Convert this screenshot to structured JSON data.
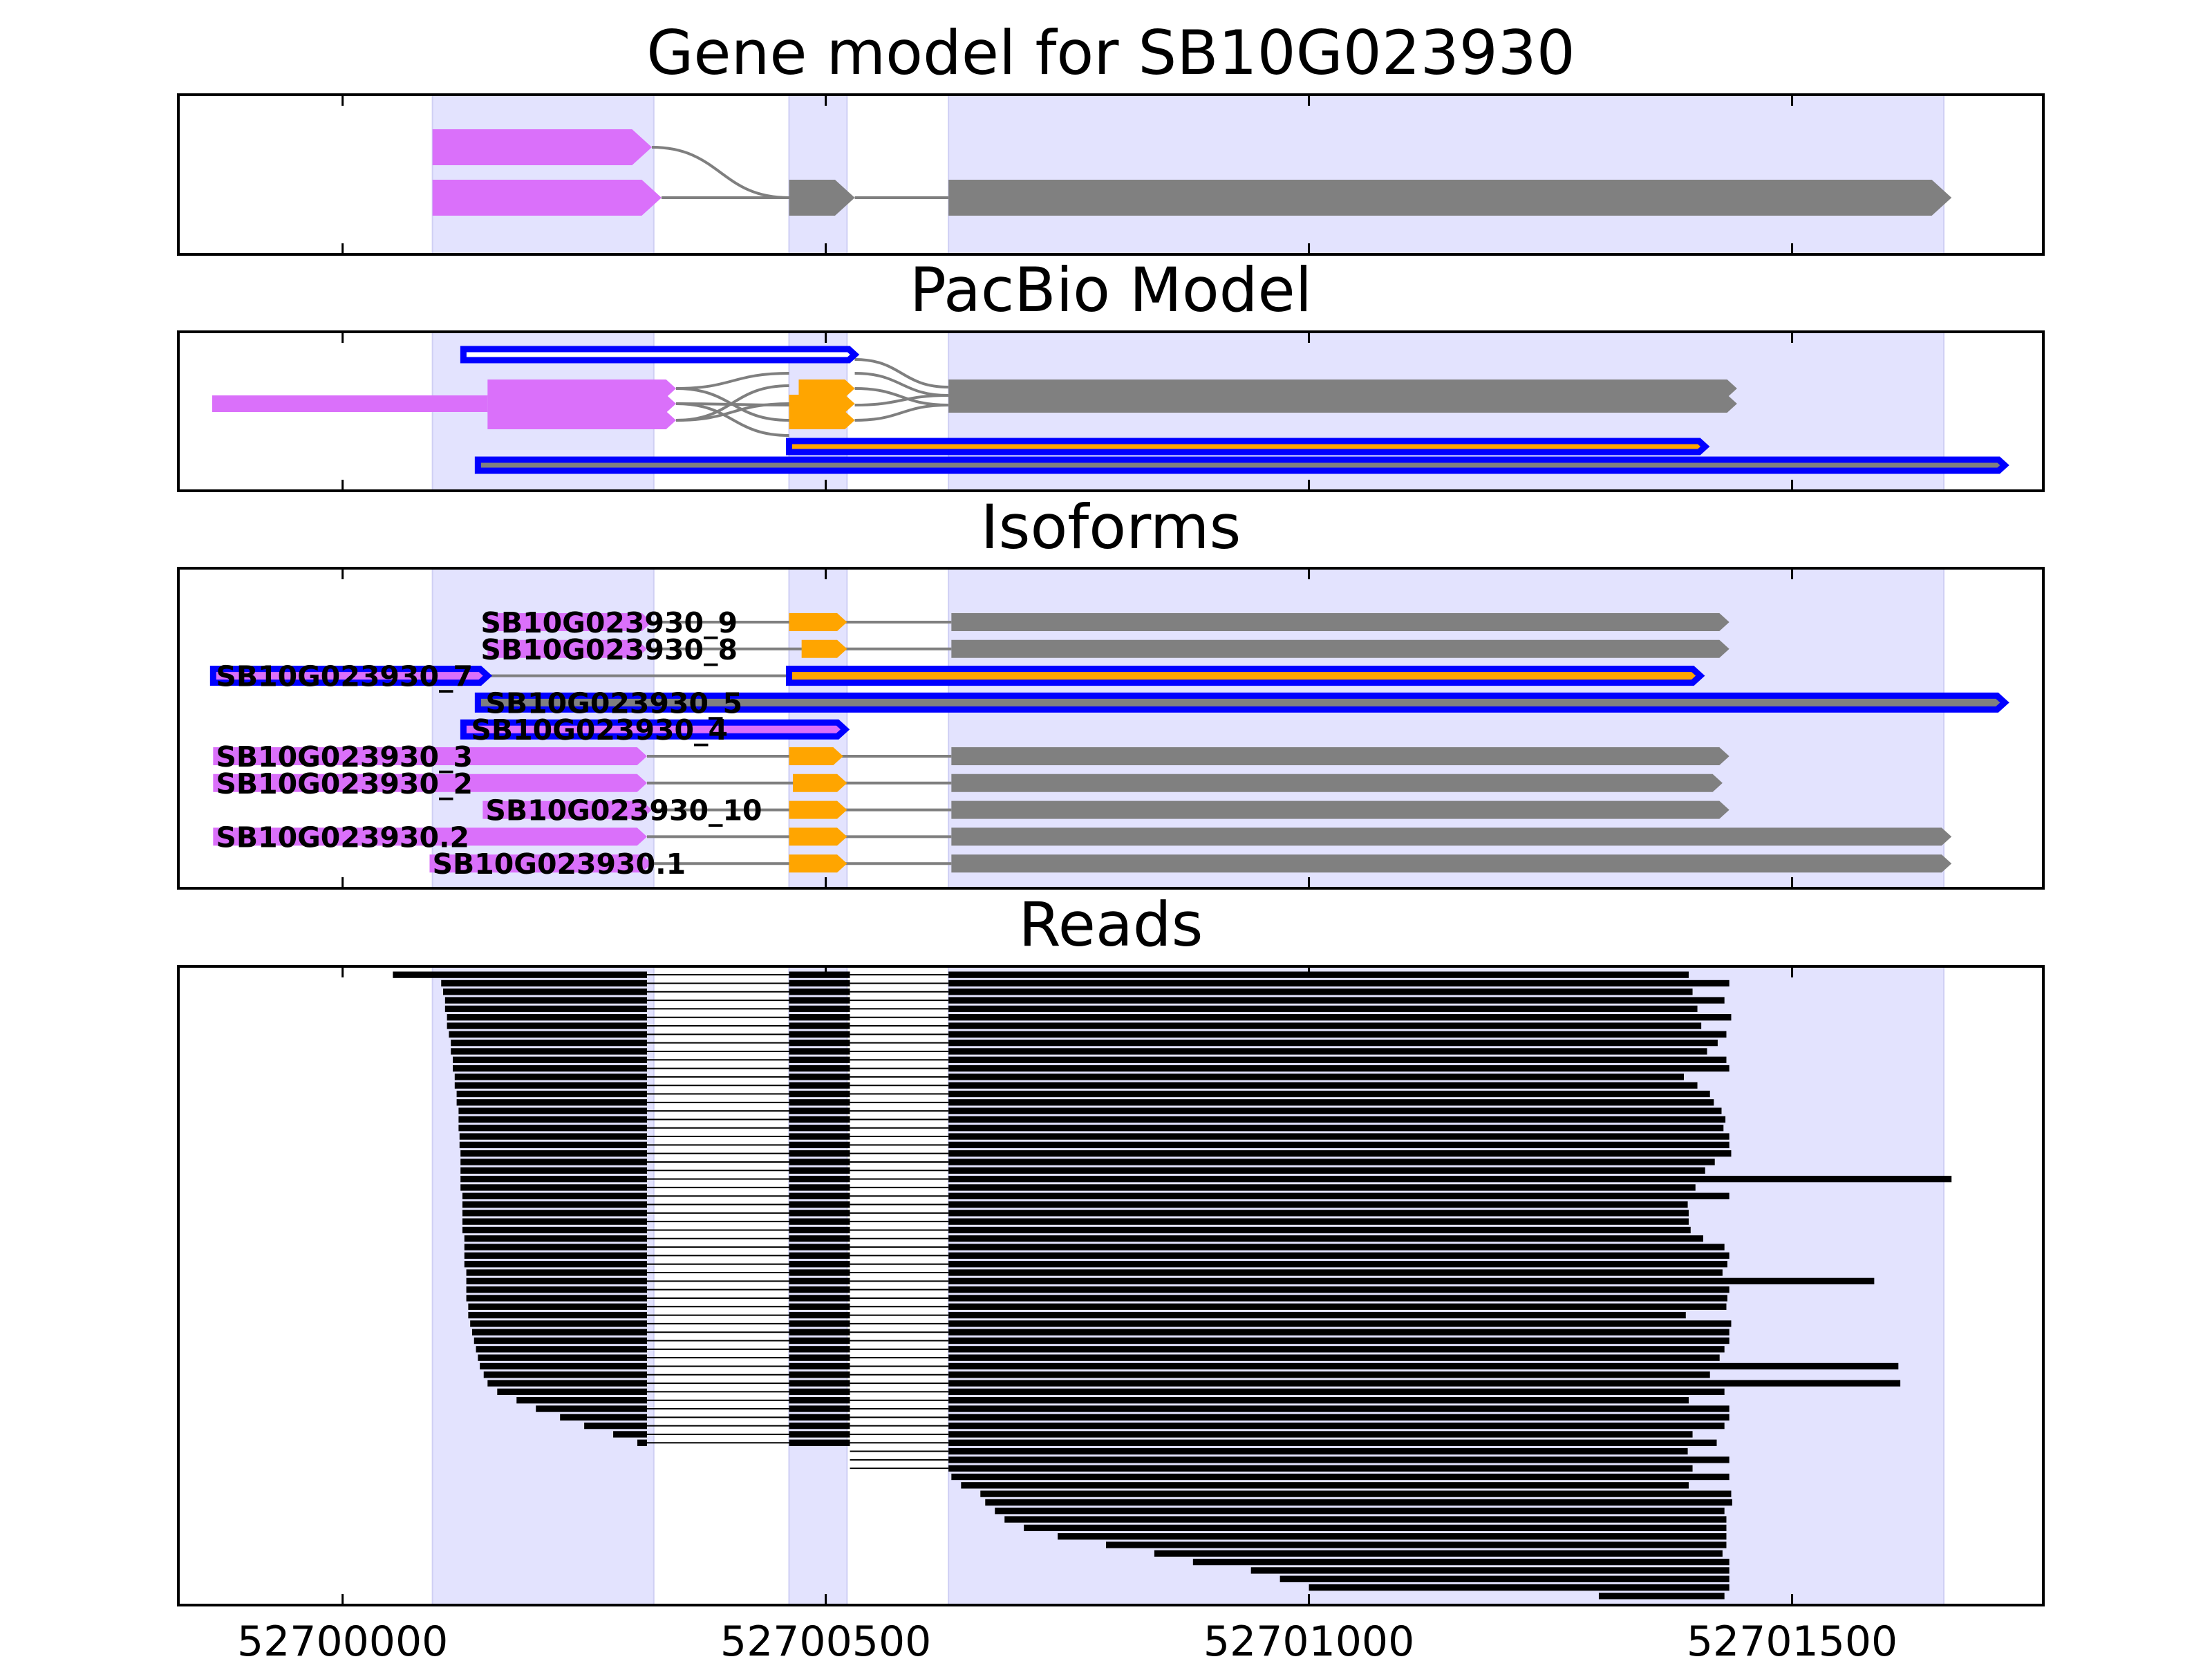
{
  "chart_data": {
    "type": "gene-track",
    "xlim": [
      52699830,
      52701760
    ],
    "x_ticks": [
      52700000,
      52700500,
      52701000,
      52701500
    ],
    "x_tick_labels": [
      "52700000",
      "52700500",
      "52701000",
      "52701500"
    ],
    "colors": {
      "utr5": "#da70fa",
      "cds_alt": "#ffa500",
      "exon": "#808080",
      "intron": "#7f7f7f",
      "outline": "#0000ff",
      "shade": "#e3e3fe",
      "read": "#000000"
    },
    "exon_shading": [
      [
        52700093,
        52700322
      ],
      [
        52700462,
        52700522
      ],
      [
        52700627,
        52701657
      ]
    ],
    "panels": [
      {
        "id": "gene_model",
        "title": "Gene model for SB10G023930",
        "transcripts": [
          {
            "row": 0,
            "strand": "+",
            "exons": [
              [
                52700093,
                52700320,
                "utr5"
              ]
            ]
          },
          {
            "row": 1,
            "strand": "+",
            "exons": [
              [
                52700093,
                52700330,
                "utr5"
              ],
              [
                52700462,
                52700530,
                "exon"
              ],
              [
                52700627,
                52701665,
                "exon"
              ]
            ]
          }
        ],
        "junctions": [
          {
            "from": [
              52700320,
              0
            ],
            "to": [
              52700462,
              1
            ]
          },
          {
            "from": [
              52700330,
              1
            ],
            "to": [
              52700462,
              1
            ]
          },
          {
            "from": [
              52700530,
              1
            ],
            "to": [
              52700627,
              1
            ]
          }
        ]
      },
      {
        "id": "pacbio_model",
        "title": "PacBio Model",
        "transcripts": [
          {
            "row": 0,
            "strand": "+",
            "outlined": true,
            "exons": [
              [
                52700125,
                52700530,
                "outline"
              ]
            ]
          },
          {
            "row": 1,
            "strand": "+",
            "exons": [
              [
                52700150,
                52700345,
                "utr5"
              ],
              [
                52700472,
                52700530,
                "cds_alt"
              ],
              [
                52700627,
                52701443,
                "exon"
              ]
            ]
          },
          {
            "row": 2,
            "strand": "+",
            "exons": [
              [
                52699865,
                52700345,
                "utr5"
              ],
              [
                52700462,
                52700530,
                "cds_alt"
              ],
              [
                52700627,
                52701443,
                "exon"
              ]
            ]
          },
          {
            "row": 3,
            "strand": "+",
            "exons": [
              [
                52700150,
                52700345,
                "utr5"
              ],
              [
                52700462,
                52700530,
                "cds_alt"
              ]
            ]
          },
          {
            "row": 4,
            "strand": "+",
            "outlined": true,
            "exons": [
              [
                52700462,
                52701410,
                "cds_alt"
              ]
            ]
          },
          {
            "row": 5,
            "strand": "+",
            "outlined": true,
            "exons": [
              [
                52700140,
                52701720,
                "exon"
              ]
            ]
          }
        ]
      },
      {
        "id": "isoforms",
        "title": "Isoforms",
        "isoforms": [
          {
            "name": "SB10G023930_9",
            "label_start": 52700140,
            "exons": [
              [
                52700150,
                52700320,
                "utr5"
              ],
              [
                52700462,
                52700522,
                "cds_alt"
              ],
              [
                52700630,
                52701435,
                "exon"
              ]
            ]
          },
          {
            "name": "SB10G023930_8",
            "label_start": 52700140,
            "exons": [
              [
                52700150,
                52700315,
                "utr5"
              ],
              [
                52700475,
                52700522,
                "cds_alt"
              ],
              [
                52700630,
                52701435,
                "exon"
              ]
            ]
          },
          {
            "name": "SB10G023930_7",
            "label_start": 52699866,
            "outlined": true,
            "exons": [
              [
                52699866,
                52700150,
                "utr5"
              ],
              [
                52700462,
                52701405,
                "cds_alt"
              ]
            ]
          },
          {
            "name": "SB10G023930_5",
            "label_start": 52700145,
            "outlined": true,
            "exons": [
              [
                52700140,
                52701720,
                "exon"
              ]
            ]
          },
          {
            "name": "SB10G023930_4",
            "label_start": 52700130,
            "outlined": true,
            "exons": [
              [
                52700125,
                52700520,
                "utr5"
              ]
            ]
          },
          {
            "name": "SB10G023930_3",
            "label_start": 52699866,
            "exons": [
              [
                52699866,
                52700315,
                "utr5"
              ],
              [
                52700462,
                52700518,
                "cds_alt"
              ],
              [
                52700630,
                52701435,
                "exon"
              ]
            ]
          },
          {
            "name": "SB10G023930_2",
            "label_start": 52699866,
            "exons": [
              [
                52699866,
                52700315,
                "utr5"
              ],
              [
                52700466,
                52700522,
                "cds_alt"
              ],
              [
                52700630,
                52701428,
                "exon"
              ]
            ]
          },
          {
            "name": "SB10G023930_10",
            "label_start": 52700145,
            "exons": [
              [
                52700145,
                52700320,
                "utr5"
              ],
              [
                52700462,
                52700522,
                "cds_alt"
              ],
              [
                52700630,
                52701435,
                "exon"
              ]
            ]
          },
          {
            "name": "SB10G023930.2",
            "label_start": 52699866,
            "exons": [
              [
                52699866,
                52700315,
                "utr5"
              ],
              [
                52700462,
                52700522,
                "cds_alt"
              ],
              [
                52700630,
                52701665,
                "exon"
              ]
            ]
          },
          {
            "name": "SB10G023930.1",
            "label_start": 52700090,
            "exons": [
              [
                52700090,
                52700320,
                "utr5"
              ],
              [
                52700462,
                52700522,
                "cds_alt"
              ],
              [
                52700630,
                52701665,
                "exon"
              ]
            ]
          }
        ]
      },
      {
        "id": "reads",
        "title": "Reads",
        "block_bounds": [
          [
            52700315,
            52700462
          ],
          [
            52700525,
            52700627
          ]
        ],
        "reads": [
          [
            52700052,
            52701393
          ],
          [
            52700102,
            52701435
          ],
          [
            52700104,
            52701397
          ],
          [
            52700106,
            52701430
          ],
          [
            52700106,
            52701402
          ],
          [
            52700108,
            52701437
          ],
          [
            52700108,
            52701406
          ],
          [
            52700110,
            52701432
          ],
          [
            52700112,
            52701423
          ],
          [
            52700112,
            52701412
          ],
          [
            52700114,
            52701432
          ],
          [
            52700114,
            52701435
          ],
          [
            52700116,
            52701388
          ],
          [
            52700116,
            52701402
          ],
          [
            52700118,
            52701415
          ],
          [
            52700118,
            52701419
          ],
          [
            52700120,
            52701427
          ],
          [
            52700120,
            52701431
          ],
          [
            52700120,
            52701429
          ],
          [
            52700121,
            52701435
          ],
          [
            52700121,
            52701435
          ],
          [
            52700122,
            52701437
          ],
          [
            52700122,
            52701420
          ],
          [
            52700122,
            52701410
          ],
          [
            52700122,
            52701665
          ],
          [
            52700122,
            52701400
          ],
          [
            52700124,
            52701435
          ],
          [
            52700124,
            52701392
          ],
          [
            52700124,
            52701393
          ],
          [
            52700124,
            52701393
          ],
          [
            52700124,
            52701395
          ],
          [
            52700126,
            52701408
          ],
          [
            52700126,
            52701430
          ],
          [
            52700126,
            52701435
          ],
          [
            52700126,
            52701433
          ],
          [
            52700128,
            52701428
          ],
          [
            52700128,
            52701585
          ],
          [
            52700128,
            52701435
          ],
          [
            52700128,
            52701433
          ],
          [
            52700130,
            52701432
          ],
          [
            52700130,
            52701390
          ],
          [
            52700132,
            52701437
          ],
          [
            52700134,
            52701435
          ],
          [
            52700136,
            52701435
          ],
          [
            52700138,
            52701430
          ],
          [
            52700140,
            52701425
          ],
          [
            52700142,
            52701610
          ],
          [
            52700146,
            52701415
          ],
          [
            52700150,
            52701612
          ],
          [
            52700160,
            52701430
          ],
          [
            52700180,
            52701393
          ],
          [
            52700200,
            52701435
          ],
          [
            52700225,
            52701435
          ],
          [
            52700250,
            52701430
          ],
          [
            52700280,
            52701397
          ],
          [
            52700305,
            52701422
          ],
          [
            52700462,
            52701392
          ],
          [
            52700470,
            52701435
          ],
          [
            52700490,
            52701397
          ],
          [
            52700630,
            52701435
          ],
          [
            52700640,
            52701393
          ],
          [
            52700660,
            52701437
          ],
          [
            52700665,
            52701438
          ],
          [
            52700675,
            52701430
          ],
          [
            52700685,
            52701432
          ],
          [
            52700705,
            52701432
          ],
          [
            52700740,
            52701432
          ],
          [
            52700790,
            52701432
          ],
          [
            52700840,
            52701428
          ],
          [
            52700880,
            52701435
          ],
          [
            52700940,
            52701435
          ],
          [
            52700970,
            52701435
          ],
          [
            52701000,
            52701435
          ],
          [
            52701300,
            52701430
          ]
        ]
      }
    ]
  }
}
